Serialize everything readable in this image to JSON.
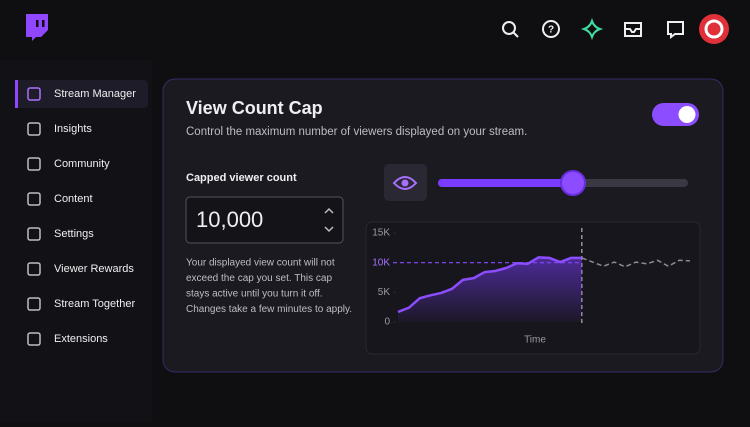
{
  "sidebar": {
    "items": [
      "Stream Manager",
      "Insights",
      "Community",
      "Content",
      "Settings",
      "Viewer Rewards",
      "Stream Together",
      "Extensions"
    ]
  },
  "card": {
    "title": "View Count Cap",
    "subtitle": "Control the maximum number of viewers displayed on your stream.",
    "input_label": "Capped viewer count",
    "input_value": "10,000",
    "help_lines": [
      "Your displayed view count will not",
      "exceed the cap you set. This cap",
      "stays active until you turn it off.",
      "Changes take a few minutes to apply."
    ]
  },
  "chart_data": {
    "type": "line",
    "xlabel": "Time",
    "ylim": [
      0,
      15000
    ],
    "yticks": [
      {
        "value": 0,
        "label": "0"
      },
      {
        "value": 5000,
        "label": "5K"
      },
      {
        "value": 10000,
        "label": "10K"
      },
      {
        "value": 15000,
        "label": "15K"
      }
    ],
    "cap": 10000,
    "series": [
      {
        "color": "#8b4dff",
        "values": [
          1700,
          2400,
          4000,
          4500,
          4900,
          5600,
          7100,
          7400,
          8400,
          8600,
          9100,
          9900,
          9800,
          10900,
          10800,
          10100,
          10800,
          10800,
          null,
          null,
          null,
          null,
          null,
          null,
          null,
          null,
          null,
          null
        ]
      },
      {
        "color": "#8a8a92",
        "values": [
          null,
          null,
          null,
          null,
          null,
          null,
          null,
          null,
          null,
          null,
          null,
          null,
          null,
          null,
          null,
          null,
          null,
          10800,
          10100,
          9400,
          10100,
          9300,
          10100,
          9800,
          10400,
          9400,
          10400,
          10300
        ]
      }
    ]
  }
}
